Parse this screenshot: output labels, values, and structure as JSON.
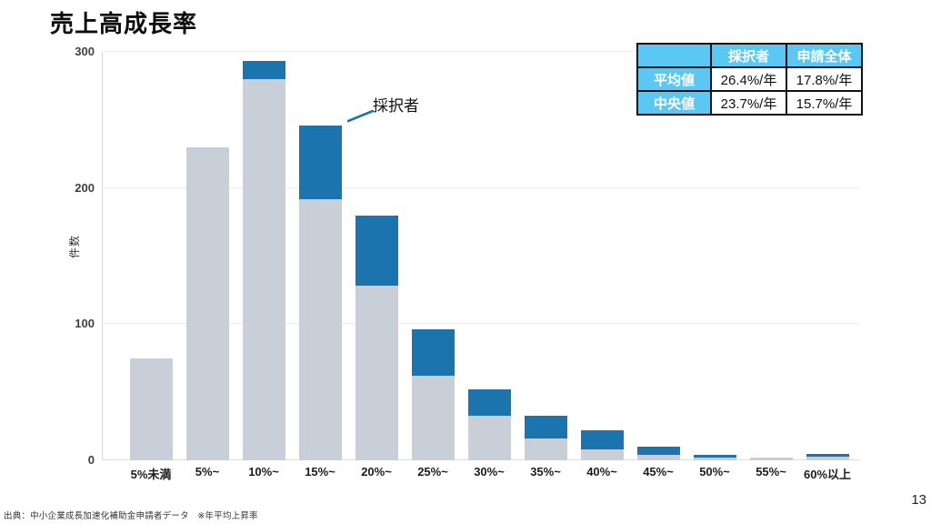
{
  "slide": {
    "title": "売上高成長率",
    "page_number": "13",
    "source_note": "出典：中小企業成長加速化補助金申請者データ　※年平均上昇率"
  },
  "annotation": {
    "label": "採択者"
  },
  "stats_table": {
    "header": [
      "",
      "採択者",
      "申請全体"
    ],
    "rows": [
      {
        "label": "平均値",
        "values": [
          "26.4%/年",
          "17.8%/年"
        ]
      },
      {
        "label": "中央値",
        "values": [
          "23.7%/年",
          "15.7%/年"
        ]
      }
    ]
  },
  "colors": {
    "bar_blue": "#1b74ad",
    "bar_gray": "#c9cfd8",
    "table_header_bg": "#5bc8f3",
    "gridline": "#ececec"
  },
  "chart_data": {
    "type": "bar",
    "stacked": true,
    "title": "売上高成長率",
    "xlabel": "",
    "ylabel": "件数",
    "ylim": [
      0,
      300
    ],
    "yticks": [
      0,
      100,
      200,
      300
    ],
    "grid": true,
    "legend_position": "none (in-chart annotation 採択者 points to blue segment)",
    "categories": [
      "5%未満",
      "5%~",
      "10%~",
      "15%~",
      "20%~",
      "25%~",
      "30%~",
      "35%~",
      "40%~",
      "45%~",
      "50%~",
      "55%~",
      "60%以上"
    ],
    "series": [
      {
        "name": "",
        "color": "#c9cfd8",
        "values": [
          75,
          230,
          280,
          192,
          128,
          62,
          33,
          16,
          8,
          4,
          2,
          2,
          3
        ]
      },
      {
        "name": "採択者",
        "color": "#1b74ad",
        "values": [
          0,
          0,
          13,
          54,
          52,
          34,
          19,
          17,
          14,
          6,
          2,
          0,
          2
        ]
      }
    ]
  }
}
